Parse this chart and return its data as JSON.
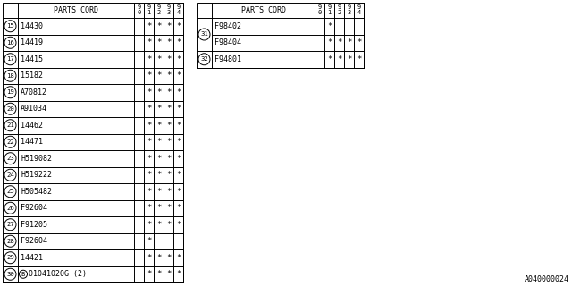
{
  "watermark": "A040000024",
  "table1_header": "PARTS CORD",
  "table1_cols": [
    "9\n0",
    "9\n1",
    "9\n2",
    "9\n3",
    "9\n4"
  ],
  "table1_rows": [
    {
      "num": "15",
      "part": "14430",
      "marks": [
        0,
        1,
        1,
        1,
        1
      ],
      "b_circle": false
    },
    {
      "num": "16",
      "part": "14419",
      "marks": [
        0,
        1,
        1,
        1,
        1
      ],
      "b_circle": false
    },
    {
      "num": "17",
      "part": "14415",
      "marks": [
        0,
        1,
        1,
        1,
        1
      ],
      "b_circle": false
    },
    {
      "num": "18",
      "part": "15182",
      "marks": [
        0,
        1,
        1,
        1,
        1
      ],
      "b_circle": false
    },
    {
      "num": "19",
      "part": "A70812",
      "marks": [
        0,
        1,
        1,
        1,
        1
      ],
      "b_circle": false
    },
    {
      "num": "20",
      "part": "A91034",
      "marks": [
        0,
        1,
        1,
        1,
        1
      ],
      "b_circle": false
    },
    {
      "num": "21",
      "part": "14462",
      "marks": [
        0,
        1,
        1,
        1,
        1
      ],
      "b_circle": false
    },
    {
      "num": "22",
      "part": "14471",
      "marks": [
        0,
        1,
        1,
        1,
        1
      ],
      "b_circle": false
    },
    {
      "num": "23",
      "part": "H519082",
      "marks": [
        0,
        1,
        1,
        1,
        1
      ],
      "b_circle": false
    },
    {
      "num": "24",
      "part": "H519222",
      "marks": [
        0,
        1,
        1,
        1,
        1
      ],
      "b_circle": false
    },
    {
      "num": "25",
      "part": "H505482",
      "marks": [
        0,
        1,
        1,
        1,
        1
      ],
      "b_circle": false
    },
    {
      "num": "26",
      "part": "F92604",
      "marks": [
        0,
        1,
        1,
        1,
        1
      ],
      "b_circle": false
    },
    {
      "num": "27",
      "part": "F91205",
      "marks": [
        0,
        1,
        1,
        1,
        1
      ],
      "b_circle": false
    },
    {
      "num": "28",
      "part": "F92604",
      "marks": [
        0,
        1,
        0,
        0,
        0
      ],
      "b_circle": false
    },
    {
      "num": "29",
      "part": "14421",
      "marks": [
        0,
        1,
        1,
        1,
        1
      ],
      "b_circle": false
    },
    {
      "num": "30",
      "part": "01041020G (2)",
      "marks": [
        0,
        1,
        1,
        1,
        1
      ],
      "b_circle": true
    }
  ],
  "table2_header": "PARTS CORD",
  "table2_cols": [
    "9\n0",
    "9\n1",
    "9\n2",
    "9\n3",
    "9\n4"
  ],
  "table2_row31a": {
    "num": "31",
    "part": "F98402",
    "marks": [
      0,
      1,
      0,
      0,
      0
    ]
  },
  "table2_row31b": {
    "num": "31",
    "part": "F98404",
    "marks": [
      0,
      1,
      1,
      1,
      1
    ]
  },
  "table2_row32": {
    "num": "32",
    "part": "F94801",
    "marks": [
      0,
      1,
      1,
      1,
      1
    ]
  }
}
